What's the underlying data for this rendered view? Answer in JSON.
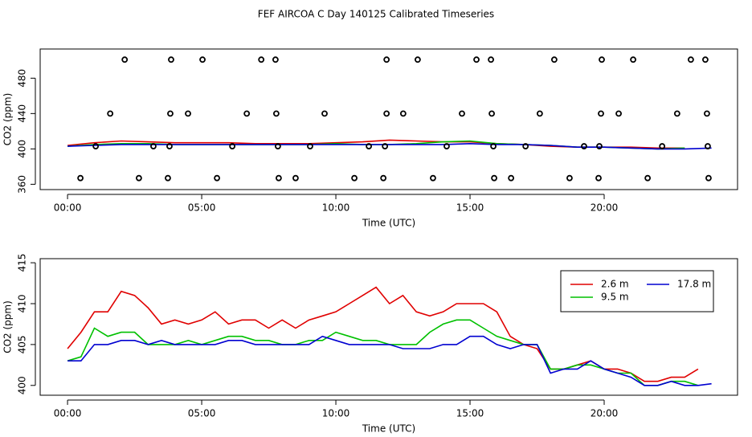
{
  "title": "FEF AIRCOA C  Day 140125  Calibrated Timeseries",
  "chart_data": [
    {
      "type": "line",
      "xlabel": "Time (UTC)",
      "ylabel": "CO2 (ppm)",
      "xlim": [
        -1.02,
        24.97
      ],
      "ylim": [
        354,
        513
      ],
      "xticks": [
        {
          "value": 0,
          "label": "00:00"
        },
        {
          "value": 5,
          "label": "05:00"
        },
        {
          "value": 10,
          "label": "10:00"
        },
        {
          "value": 15,
          "label": "15:00"
        },
        {
          "value": 20,
          "label": "20:00"
        }
      ],
      "yticks": [
        360,
        400,
        440,
        480
      ],
      "x": [
        0,
        1,
        2,
        3,
        4,
        5,
        6,
        7,
        8,
        9,
        10,
        11,
        12,
        13,
        14,
        15,
        16,
        17,
        18,
        19,
        20,
        21,
        22,
        23,
        24
      ],
      "series": [
        {
          "color": "#e00000",
          "values": [
            404,
            407,
            409,
            408,
            407,
            407,
            407,
            406,
            406,
            406,
            407,
            408,
            410,
            409,
            408,
            408,
            406,
            405,
            403,
            402,
            402,
            402,
            401,
            401,
            null
          ]
        },
        {
          "color": "#00c000",
          "values": [
            403,
            405,
            406,
            406,
            405,
            405,
            405,
            405,
            405,
            405,
            406,
            405,
            405,
            406,
            408,
            409,
            406,
            405,
            404,
            402,
            402,
            401,
            400,
            401,
            null
          ]
        },
        {
          "color": "#0000d0",
          "values": [
            403,
            404,
            405,
            405,
            405,
            405,
            405,
            405,
            405,
            405,
            405,
            405,
            405,
            405,
            405,
            406,
            405,
            405,
            404,
            402,
            402,
            401,
            400,
            400,
            401
          ]
        }
      ],
      "markers": {
        "color": "#000000",
        "x": [
          2.13,
          3.86,
          5.03,
          7.22,
          7.75,
          11.89,
          13.05,
          15.24,
          15.78,
          18.14,
          19.91,
          21.08,
          23.23,
          23.77,
          1.59,
          3.83,
          4.49,
          6.68,
          7.78,
          9.58,
          11.89,
          12.51,
          14.7,
          15.81,
          17.6,
          19.88,
          20.54,
          22.72,
          23.83,
          1.05,
          3.2,
          3.8,
          6.14,
          7.84,
          9.04,
          11.23,
          11.83,
          14.13,
          15.87,
          17.07,
          19.25,
          19.82,
          22.16,
          23.86,
          0.48,
          2.66,
          3.74,
          5.57,
          7.87,
          8.5,
          10.69,
          11.77,
          13.62,
          15.9,
          16.53,
          18.71,
          19.79,
          21.62,
          23.89
        ],
        "y": [
          501,
          501,
          501,
          501,
          501,
          501,
          501,
          501,
          501,
          501,
          501,
          501,
          501,
          501,
          440,
          440,
          440,
          440,
          440,
          440,
          440,
          440,
          440,
          440,
          440,
          440,
          440,
          440,
          440,
          403,
          403,
          403,
          403,
          403,
          403,
          403,
          403,
          403,
          403,
          403,
          403,
          403,
          403,
          403,
          367,
          367,
          367,
          367,
          367,
          367,
          367,
          367,
          367,
          367,
          367,
          367,
          367,
          367,
          367
        ]
      }
    },
    {
      "type": "line",
      "xlabel": "Time (UTC)",
      "ylabel": "CO2 (ppm)",
      "xlim": [
        -1.02,
        24.97
      ],
      "ylim": [
        398.8,
        415.5
      ],
      "xticks": [
        {
          "value": 0,
          "label": "00:00"
        },
        {
          "value": 5,
          "label": "05:00"
        },
        {
          "value": 10,
          "label": "10:00"
        },
        {
          "value": 15,
          "label": "15:00"
        },
        {
          "value": 20,
          "label": "20:00"
        }
      ],
      "yticks": [
        400,
        405,
        410,
        415
      ],
      "legend": "top-right",
      "x": [
        0,
        0.5,
        1,
        1.5,
        2,
        2.5,
        3,
        3.5,
        4,
        4.5,
        5,
        5.5,
        6,
        6.5,
        7,
        7.5,
        8,
        8.5,
        9,
        9.5,
        10,
        10.5,
        11,
        11.5,
        12,
        12.5,
        13,
        13.5,
        14,
        14.5,
        15,
        15.5,
        16,
        16.5,
        17,
        17.5,
        18,
        18.5,
        19,
        19.5,
        20,
        20.5,
        21,
        21.5,
        22,
        22.5,
        23,
        23.5,
        24
      ],
      "series": [
        {
          "name": "2.6 m",
          "color": "#e00000",
          "values": [
            404.5,
            406.5,
            409,
            409,
            411.5,
            411,
            409.5,
            407.5,
            408,
            407.5,
            408,
            409,
            407.5,
            408,
            408,
            407,
            408,
            407,
            408,
            408.5,
            409,
            410,
            411,
            412,
            410,
            411,
            409,
            408.5,
            409,
            410,
            410,
            410,
            409,
            406,
            405,
            404.5,
            402,
            402,
            402.5,
            403,
            402,
            402,
            401.5,
            400.5,
            400.5,
            401,
            401,
            402,
            null
          ]
        },
        {
          "name": "9.5 m",
          "color": "#00c000",
          "values": [
            403,
            403.5,
            407,
            406,
            406.5,
            406.5,
            405,
            405,
            405,
            405.5,
            405,
            405.5,
            406,
            406,
            405.5,
            405.5,
            405,
            405,
            405.5,
            405.5,
            406.5,
            406,
            405.5,
            405.5,
            405,
            405,
            405,
            406.5,
            407.5,
            408,
            408,
            407,
            406,
            405.5,
            405,
            405,
            402,
            402,
            402.5,
            402.5,
            402,
            401.5,
            401.5,
            400,
            400,
            400.5,
            400.5,
            400,
            null
          ]
        },
        {
          "name": "17.8 m",
          "color": "#0000d0",
          "values": [
            403,
            403,
            405,
            405,
            405.5,
            405.5,
            405,
            405.5,
            405,
            405,
            405,
            405,
            405.5,
            405.5,
            405,
            405,
            405,
            405,
            405,
            406,
            405.5,
            405,
            405,
            405,
            405,
            404.5,
            404.5,
            404.5,
            405,
            405,
            406,
            406,
            405,
            404.5,
            405,
            405,
            401.5,
            402,
            402,
            403,
            402,
            401.5,
            401,
            400,
            400,
            400.5,
            400,
            400,
            400.2
          ]
        }
      ]
    }
  ]
}
